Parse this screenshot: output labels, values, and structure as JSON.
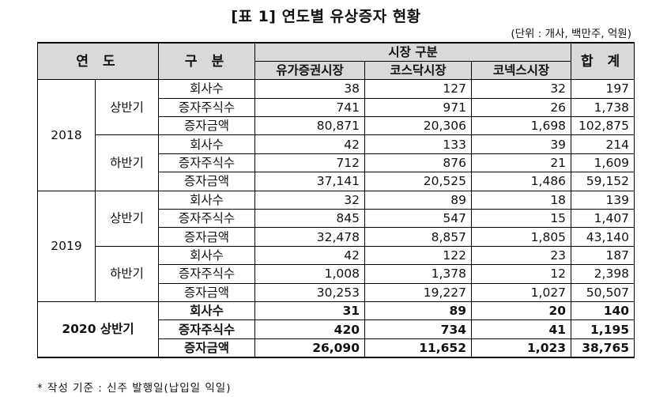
{
  "title": "[표 1] 연도별 유상증자 현황",
  "unit_note": "(단위 : 개사, 백만주, 억원)",
  "header": {
    "year": "연 도",
    "category": "구 분",
    "market_group": "시장 구분",
    "markets": [
      "유가증권시장",
      "코스닥시장",
      "코넥스시장"
    ],
    "total": "합 계"
  },
  "groups": [
    {
      "year": "2018",
      "halves": [
        {
          "label": "상반기",
          "rows": [
            {
              "category": "회사수",
              "values": [
                "38",
                "127",
                "32",
                "197"
              ]
            },
            {
              "category": "증자주식수",
              "values": [
                "741",
                "971",
                "26",
                "1,738"
              ]
            },
            {
              "category": "증자금액",
              "values": [
                "80,871",
                "20,306",
                "1,698",
                "102,875"
              ]
            }
          ]
        },
        {
          "label": "하반기",
          "rows": [
            {
              "category": "회사수",
              "values": [
                "42",
                "133",
                "39",
                "214"
              ]
            },
            {
              "category": "증자주식수",
              "values": [
                "712",
                "876",
                "21",
                "1,609"
              ]
            },
            {
              "category": "증자금액",
              "values": [
                "37,141",
                "20,525",
                "1,486",
                "59,152"
              ]
            }
          ]
        }
      ]
    },
    {
      "year": "2019",
      "halves": [
        {
          "label": "상반기",
          "rows": [
            {
              "category": "회사수",
              "values": [
                "32",
                "89",
                "18",
                "139"
              ]
            },
            {
              "category": "증자주식수",
              "values": [
                "845",
                "547",
                "15",
                "1,407"
              ]
            },
            {
              "category": "증자금액",
              "values": [
                "32,478",
                "8,857",
                "1,805",
                "43,140"
              ]
            }
          ]
        },
        {
          "label": "하반기",
          "rows": [
            {
              "category": "회사수",
              "values": [
                "42",
                "122",
                "23",
                "187"
              ]
            },
            {
              "category": "증자주식수",
              "values": [
                "1,008",
                "1,378",
                "12",
                "2,398"
              ]
            },
            {
              "category": "증자금액",
              "values": [
                "30,253",
                "19,227",
                "1,027",
                "50,507"
              ]
            }
          ]
        }
      ]
    }
  ],
  "latest": {
    "label": "2020 상반기",
    "rows": [
      {
        "category": "회사수",
        "values": [
          "31",
          "89",
          "20",
          "140"
        ]
      },
      {
        "category": "증자주식수",
        "values": [
          "420",
          "734",
          "41",
          "1,195"
        ]
      },
      {
        "category": "증자금액",
        "values": [
          "26,090",
          "11,652",
          "1,023",
          "38,765"
        ]
      }
    ]
  },
  "footnote": "* 작성 기준 : 신주 발행일(납입일 익일)"
}
